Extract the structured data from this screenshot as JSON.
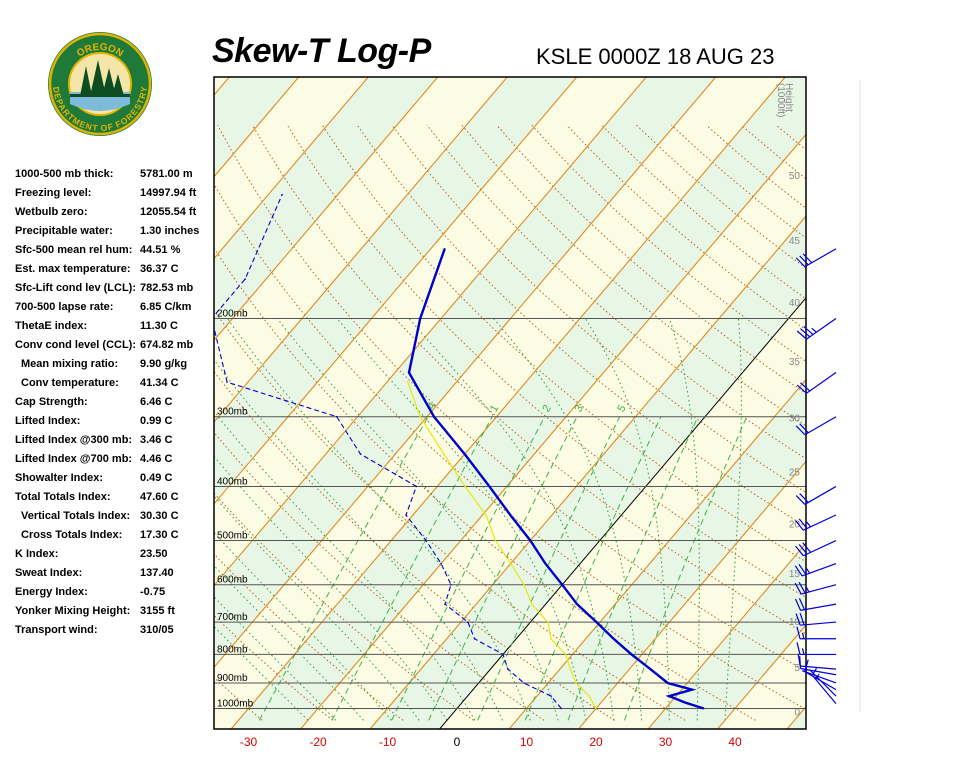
{
  "header": {
    "title": "Skew-T Log-P",
    "subtitle": "KSLE 0000Z 18 AUG 23"
  },
  "logo": {
    "top_text": "OREGON",
    "bottom_text": "DEPARTMENT OF FORESTRY"
  },
  "indices": [
    {
      "label": "1000-500 mb thick:",
      "value": "5781.00 m",
      "indent": false
    },
    {
      "label": "Freezing level:",
      "value": "14997.94 ft",
      "indent": false
    },
    {
      "label": "Wetbulb zero:",
      "value": "12055.54 ft",
      "indent": false
    },
    {
      "label": "Precipitable water:",
      "value": "1.30 inches",
      "indent": false
    },
    {
      "label": "Sfc-500 mean rel hum:",
      "value": "44.51 %",
      "indent": false
    },
    {
      "label": "Est. max temperature:",
      "value": "36.37 C",
      "indent": false
    },
    {
      "label": "Sfc-Lift cond lev (LCL):",
      "value": "782.53 mb",
      "indent": false
    },
    {
      "label": "700-500 lapse rate:",
      "value": "6.85 C/km",
      "indent": false
    },
    {
      "label": "ThetaE index:",
      "value": "11.30 C",
      "indent": false
    },
    {
      "label": "Conv cond level (CCL):",
      "value": "674.82 mb",
      "indent": false
    },
    {
      "label": "Mean mixing ratio:",
      "value": "9.90 g/kg",
      "indent": true
    },
    {
      "label": "Conv temperature:",
      "value": "41.34 C",
      "indent": true
    },
    {
      "label": "Cap Strength:",
      "value": "6.46 C",
      "indent": false
    },
    {
      "label": "Lifted Index:",
      "value": "0.99 C",
      "indent": false
    },
    {
      "label": "Lifted Index @300 mb:",
      "value": "3.46 C",
      "indent": false
    },
    {
      "label": "Lifted Index @700 mb:",
      "value": "4.46 C",
      "indent": false
    },
    {
      "label": "Showalter Index:",
      "value": "0.49 C",
      "indent": false
    },
    {
      "label": "Total Totals Index:",
      "value": "47.60 C",
      "indent": false
    },
    {
      "label": "Vertical Totals Index:",
      "value": "30.30 C",
      "indent": true
    },
    {
      "label": "Cross Totals Index:",
      "value": "17.30 C",
      "indent": true
    },
    {
      "label": "K Index:",
      "value": "23.50",
      "indent": false
    },
    {
      "label": "Sweat Index:",
      "value": "137.40",
      "indent": false
    },
    {
      "label": "Energy Index:",
      "value": "-0.75",
      "indent": false
    },
    {
      "label": "Yonker Mixing Height:",
      "value": "3155 ft",
      "indent": false
    },
    {
      "label": "Transport wind:",
      "value": "310/05",
      "indent": false
    }
  ],
  "chart_data": {
    "type": "line",
    "title": "Skew-T Log-P",
    "subtitle": "KSLE 0000Z 18 AUG 23",
    "x_axis": {
      "ticks": [
        -30,
        -20,
        -10,
        0,
        10,
        20,
        30,
        40
      ],
      "tick_color": "#dd0000"
    },
    "pressure_levels": [
      {
        "p": 200,
        "label": "200mb"
      },
      {
        "p": 300,
        "label": "300mb"
      },
      {
        "p": 400,
        "label": "400mb"
      },
      {
        "p": 500,
        "label": "500mb"
      },
      {
        "p": 600,
        "label": "600mb"
      },
      {
        "p": 700,
        "label": "700mb"
      },
      {
        "p": 800,
        "label": "800mb"
      },
      {
        "p": 900,
        "label": "900mb"
      },
      {
        "p": 1000,
        "label": "1000mb"
      }
    ],
    "height_axis": {
      "title_line1": "Height",
      "title_line2": "(1000ft)",
      "ticks": [
        {
          "v": 0,
          "label": "0"
        },
        {
          "v": 5,
          "label": "5"
        },
        {
          "v": 10,
          "label": "10"
        },
        {
          "v": 15,
          "label": "15"
        },
        {
          "v": 20,
          "label": "20"
        },
        {
          "v": 25,
          "label": "25"
        },
        {
          "v": 30,
          "label": "30"
        },
        {
          "v": 35,
          "label": "35"
        },
        {
          "v": 40,
          "label": "40"
        },
        {
          "v": 45,
          "label": "45"
        },
        {
          "v": 50,
          "label": "50"
        }
      ]
    },
    "mixing_ratio_labels": [
      ".4",
      "1",
      "2",
      "3",
      "5"
    ],
    "series": [
      {
        "role": "temperature",
        "color": "#0000cc",
        "points": [
          {
            "p": 1000,
            "t": 35.5
          },
          {
            "p": 975,
            "t": 32.0
          },
          {
            "p": 950,
            "t": 29.0
          },
          {
            "p": 925,
            "t": 31.5
          },
          {
            "p": 900,
            "t": 27.2
          },
          {
            "p": 850,
            "t": 23.0
          },
          {
            "p": 800,
            "t": 18.5
          },
          {
            "p": 750,
            "t": 14.0
          },
          {
            "p": 700,
            "t": 9.5
          },
          {
            "p": 650,
            "t": 4.5
          },
          {
            "p": 600,
            "t": 0.0
          },
          {
            "p": 550,
            "t": -5.0
          },
          {
            "p": 500,
            "t": -10.0
          },
          {
            "p": 450,
            "t": -16.0
          },
          {
            "p": 400,
            "t": -22.5
          },
          {
            "p": 350,
            "t": -30.0
          },
          {
            "p": 300,
            "t": -39.0
          },
          {
            "p": 250,
            "t": -48.0
          },
          {
            "p": 200,
            "t": -53.0
          },
          {
            "p": 150,
            "t": -58.0
          }
        ]
      },
      {
        "role": "dewpoint",
        "color": "#0000cc",
        "dashed": true,
        "points": [
          {
            "p": 1000,
            "t": 15.0
          },
          {
            "p": 950,
            "t": 12.0
          },
          {
            "p": 900,
            "t": 6.5
          },
          {
            "p": 850,
            "t": 2.5
          },
          {
            "p": 800,
            "t": 0.0
          },
          {
            "p": 750,
            "t": -6.0
          },
          {
            "p": 700,
            "t": -9.0
          },
          {
            "p": 650,
            "t": -14.5
          },
          {
            "p": 600,
            "t": -16.0
          },
          {
            "p": 550,
            "t": -20.0
          },
          {
            "p": 500,
            "t": -25.0
          },
          {
            "p": 450,
            "t": -31.0
          },
          {
            "p": 400,
            "t": -33.0
          },
          {
            "p": 350,
            "t": -45.0
          },
          {
            "p": 300,
            "t": -53.0
          },
          {
            "p": 260,
            "t": -73.0
          },
          {
            "p": 200,
            "t": -83.0
          },
          {
            "p": 170,
            "t": -83.0
          },
          {
            "p": 120,
            "t": -88.0
          }
        ]
      },
      {
        "role": "wetbulb",
        "color": "#e6e600",
        "points": [
          {
            "p": 1000,
            "t": 20.0
          },
          {
            "p": 950,
            "t": 17.5
          },
          {
            "p": 900,
            "t": 14.0
          },
          {
            "p": 850,
            "t": 11.5
          },
          {
            "p": 800,
            "t": 9.0
          },
          {
            "p": 750,
            "t": 5.0
          },
          {
            "p": 700,
            "t": 2.5
          },
          {
            "p": 650,
            "t": -2.0
          },
          {
            "p": 600,
            "t": -5.5
          },
          {
            "p": 550,
            "t": -10.0
          },
          {
            "p": 500,
            "t": -15.0
          },
          {
            "p": 450,
            "t": -19.5
          },
          {
            "p": 400,
            "t": -26.0
          },
          {
            "p": 350,
            "t": -33.0
          },
          {
            "p": 300,
            "t": -41.0
          },
          {
            "p": 260,
            "t": -47.0
          }
        ]
      }
    ],
    "wind_barbs": [
      {
        "p": 980,
        "dir": 320,
        "spd": 5
      },
      {
        "p": 950,
        "dir": 315,
        "spd": 5
      },
      {
        "p": 925,
        "dir": 300,
        "spd": 10
      },
      {
        "p": 900,
        "dir": 290,
        "spd": 5
      },
      {
        "p": 870,
        "dir": 280,
        "spd": 10
      },
      {
        "p": 850,
        "dir": 275,
        "spd": 10
      },
      {
        "p": 800,
        "dir": 270,
        "spd": 15
      },
      {
        "p": 750,
        "dir": 270,
        "spd": 15
      },
      {
        "p": 700,
        "dir": 265,
        "spd": 20
      },
      {
        "p": 650,
        "dir": 260,
        "spd": 20
      },
      {
        "p": 600,
        "dir": 255,
        "spd": 25
      },
      {
        "p": 550,
        "dir": 250,
        "spd": 25
      },
      {
        "p": 500,
        "dir": 245,
        "spd": 30
      },
      {
        "p": 450,
        "dir": 245,
        "spd": 25
      },
      {
        "p": 400,
        "dir": 240,
        "spd": 20
      },
      {
        "p": 300,
        "dir": 240,
        "spd": 20
      },
      {
        "p": 250,
        "dir": 235,
        "spd": 20
      },
      {
        "p": 200,
        "dir": 235,
        "spd": 35
      },
      {
        "p": 150,
        "dir": 240,
        "spd": 30
      }
    ]
  }
}
